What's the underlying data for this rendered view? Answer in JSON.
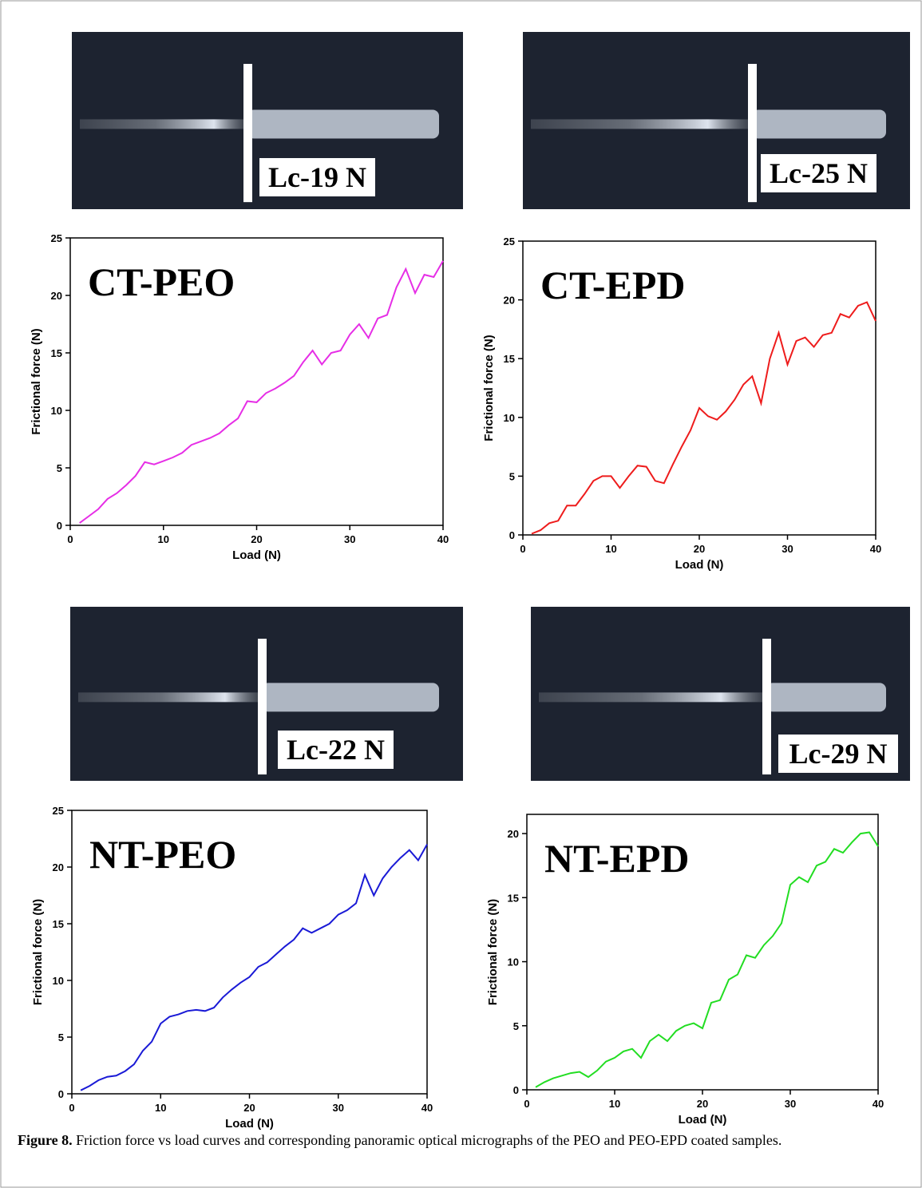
{
  "chart_data": [
    {
      "type": "line",
      "title": "CT-PEO",
      "x_label": "Load (N)",
      "y_label": "Frictional force (N)",
      "color": "#e62ee6",
      "x": [
        1,
        2,
        3,
        4,
        5,
        6,
        7,
        8,
        9,
        10,
        11,
        12,
        13,
        14,
        15,
        16,
        17,
        18,
        19,
        20,
        21,
        22,
        23,
        24,
        25,
        26,
        27,
        28,
        29,
        30,
        31,
        32,
        33,
        34,
        35,
        36,
        37,
        38,
        39,
        40
      ],
      "values": [
        0.2,
        0.8,
        1.4,
        2.3,
        2.8,
        3.5,
        4.3,
        5.5,
        5.3,
        5.6,
        5.9,
        6.3,
        7.0,
        7.3,
        7.6,
        8.0,
        8.7,
        9.3,
        10.8,
        10.7,
        11.5,
        11.9,
        12.4,
        13.0,
        14.2,
        15.2,
        14.0,
        15.0,
        15.2,
        16.6,
        17.5,
        16.3,
        18.0,
        18.3,
        20.7,
        22.3,
        20.2,
        21.8,
        21.6,
        23.0
      ],
      "xlim": [
        0,
        40
      ],
      "xticks": [
        0,
        10,
        20,
        30,
        40
      ],
      "ylim": [
        0,
        25
      ],
      "yticks": [
        0,
        5,
        10,
        15,
        20,
        25
      ]
    },
    {
      "type": "line",
      "title": "CT-EPD",
      "x_label": "Load (N)",
      "y_label": "Frictional force (N)",
      "color": "#ee1c1c",
      "x": [
        1,
        2,
        3,
        4,
        5,
        6,
        7,
        8,
        9,
        10,
        11,
        12,
        13,
        14,
        15,
        16,
        17,
        18,
        19,
        20,
        21,
        22,
        23,
        24,
        25,
        26,
        27,
        28,
        29,
        30,
        31,
        32,
        33,
        34,
        35,
        36,
        37,
        38,
        39,
        40
      ],
      "values": [
        0.1,
        0.4,
        1.0,
        1.2,
        2.5,
        2.5,
        3.5,
        4.6,
        5.0,
        5.0,
        4.0,
        5.0,
        5.9,
        5.8,
        4.6,
        4.4,
        6.0,
        7.5,
        8.9,
        10.8,
        10.1,
        9.8,
        10.5,
        11.5,
        12.8,
        13.5,
        11.2,
        15.0,
        17.2,
        14.5,
        16.5,
        16.8,
        16.0,
        17.0,
        17.2,
        18.8,
        18.5,
        19.5,
        19.8,
        18.2
      ],
      "xlim": [
        0,
        40
      ],
      "xticks": [
        0,
        10,
        20,
        30,
        40
      ],
      "ylim": [
        0,
        25
      ],
      "yticks": [
        0,
        5,
        10,
        15,
        20,
        25
      ]
    },
    {
      "type": "line",
      "title": "NT-PEO",
      "x_label": "Load (N)",
      "y_label": "Frictional force (N)",
      "color": "#1a1ad6",
      "x": [
        1,
        2,
        3,
        4,
        5,
        6,
        7,
        8,
        9,
        10,
        11,
        12,
        13,
        14,
        15,
        16,
        17,
        18,
        19,
        20,
        21,
        22,
        23,
        24,
        25,
        26,
        27,
        28,
        29,
        30,
        31,
        32,
        33,
        34,
        35,
        36,
        37,
        38,
        39,
        40
      ],
      "values": [
        0.3,
        0.7,
        1.2,
        1.5,
        1.6,
        2.0,
        2.6,
        3.8,
        4.6,
        6.2,
        6.8,
        7.0,
        7.3,
        7.4,
        7.3,
        7.6,
        8.5,
        9.2,
        9.8,
        10.3,
        11.2,
        11.6,
        12.3,
        13.0,
        13.6,
        14.6,
        14.2,
        14.6,
        15.0,
        15.8,
        16.2,
        16.8,
        19.3,
        17.5,
        19.0,
        20.0,
        20.8,
        21.5,
        20.6,
        22.0
      ],
      "xlim": [
        0,
        40
      ],
      "xticks": [
        0,
        10,
        20,
        30,
        40
      ],
      "ylim": [
        0,
        25
      ],
      "yticks": [
        0,
        5,
        10,
        15,
        20,
        25
      ]
    },
    {
      "type": "line",
      "title": "NT-EPD",
      "x_label": "Load (N)",
      "y_label": "Frictional force (N)",
      "color": "#22dd22",
      "x": [
        1,
        2,
        3,
        4,
        5,
        6,
        7,
        8,
        9,
        10,
        11,
        12,
        13,
        14,
        15,
        16,
        17,
        18,
        19,
        20,
        21,
        22,
        23,
        24,
        25,
        26,
        27,
        28,
        29,
        30,
        31,
        32,
        33,
        34,
        35,
        36,
        37,
        38,
        39,
        40
      ],
      "values": [
        0.2,
        0.6,
        0.9,
        1.1,
        1.3,
        1.4,
        1.0,
        1.5,
        2.2,
        2.5,
        3.0,
        3.2,
        2.5,
        3.8,
        4.3,
        3.8,
        4.6,
        5.0,
        5.2,
        4.8,
        6.8,
        7.0,
        8.6,
        9.0,
        10.5,
        10.3,
        11.3,
        12.0,
        13.0,
        16.0,
        16.6,
        16.2,
        17.5,
        17.8,
        18.8,
        18.5,
        19.3,
        20.0,
        20.1,
        19.0
      ],
      "xlim": [
        0,
        40
      ],
      "xticks": [
        0,
        10,
        20,
        30,
        40
      ],
      "ylim": [
        0,
        21.5
      ],
      "yticks": [
        0,
        5,
        10,
        15,
        20
      ]
    }
  ],
  "micrographs": [
    {
      "label": "Lc-19 N"
    },
    {
      "label": "Lc-25 N"
    },
    {
      "label": "Lc-22 N"
    },
    {
      "label": "Lc-29 N"
    }
  ],
  "caption": {
    "label": "Figure 8.",
    "text": "Friction force vs load curves and corresponding panoramic optical micrographs of the PEO and PEO-EPD coated samples."
  }
}
